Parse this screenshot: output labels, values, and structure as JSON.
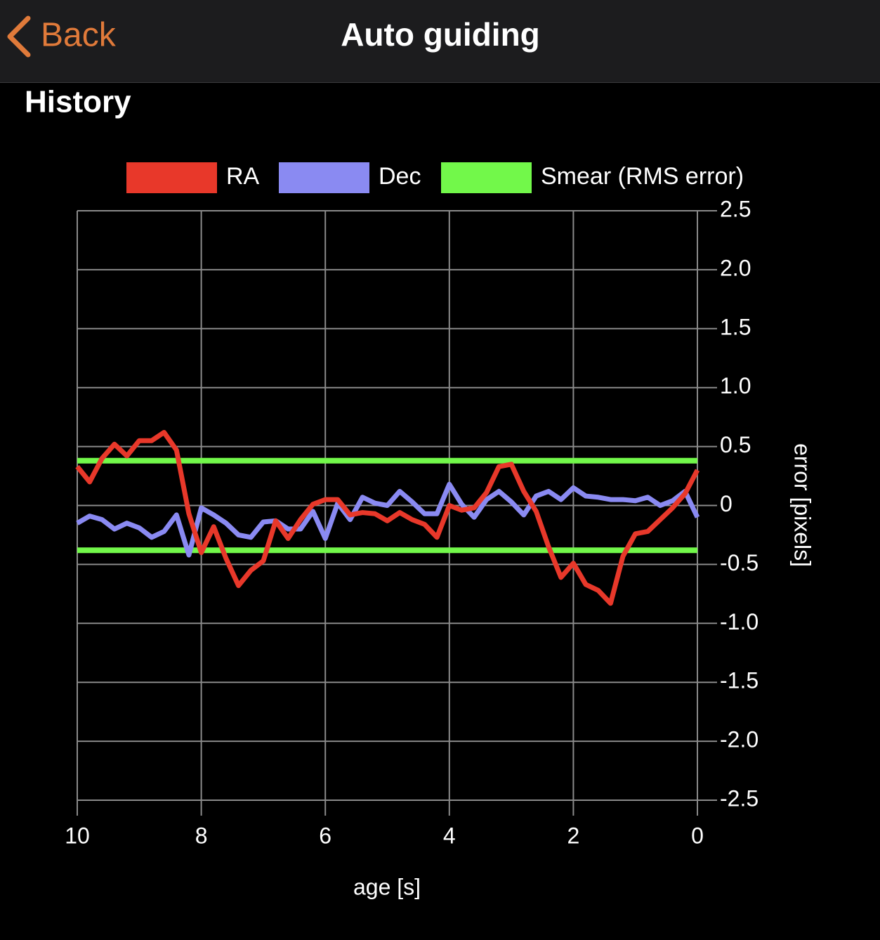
{
  "header": {
    "back": "Back",
    "title": "Auto guiding"
  },
  "section_title": "History",
  "chart_data": {
    "type": "line",
    "x": [
      10,
      9.8,
      9.6,
      9.4,
      9.2,
      9,
      8.8,
      8.6,
      8.4,
      8.2,
      8,
      7.8,
      7.6,
      7.4,
      7.2,
      7,
      6.8,
      6.6,
      6.4,
      6.2,
      6,
      5.8,
      5.6,
      5.4,
      5.2,
      5,
      4.8,
      4.6,
      4.4,
      4.2,
      4,
      3.8,
      3.6,
      3.4,
      3.2,
      3,
      2.8,
      2.6,
      2.4,
      2.2,
      2,
      1.8,
      1.6,
      1.4,
      1.2,
      1,
      0.8,
      0.6,
      0.4,
      0.2,
      0
    ],
    "series": [
      {
        "name": "RA",
        "color": "#e8382a",
        "values": [
          0.33,
          0.2,
          0.4,
          0.52,
          0.42,
          0.55,
          0.55,
          0.62,
          0.47,
          -0.07,
          -0.4,
          -0.18,
          -0.45,
          -0.68,
          -0.55,
          -0.47,
          -0.13,
          -0.28,
          -0.12,
          0.01,
          0.05,
          0.05,
          -0.08,
          -0.06,
          -0.07,
          -0.13,
          -0.06,
          -0.12,
          -0.16,
          -0.27,
          0,
          -0.04,
          -0.02,
          0.11,
          0.33,
          0.35,
          0.12,
          -0.05,
          -0.35,
          -0.61,
          -0.49,
          -0.67,
          -0.72,
          -0.83,
          -0.43,
          -0.24,
          -0.22,
          -0.12,
          -0.02,
          0.1,
          0.3
        ]
      },
      {
        "name": "Dec",
        "color": "#8a8af2",
        "values": [
          -0.15,
          -0.09,
          -0.12,
          -0.2,
          -0.15,
          -0.19,
          -0.27,
          -0.22,
          -0.08,
          -0.42,
          -0.02,
          -0.08,
          -0.15,
          -0.25,
          -0.27,
          -0.14,
          -0.13,
          -0.2,
          -0.2,
          -0.05,
          -0.28,
          0.02,
          -0.12,
          0.07,
          0.02,
          0,
          0.12,
          0.03,
          -0.07,
          -0.07,
          0.18,
          0.01,
          -0.1,
          0.05,
          0.12,
          0.03,
          -0.08,
          0.08,
          0.12,
          0.05,
          0.15,
          0.08,
          0.07,
          0.05,
          0.05,
          0.04,
          0.07,
          0,
          0.04,
          0.12,
          -0.1
        ]
      }
    ],
    "smear": {
      "name": "Smear (RMS error)",
      "color": "#72f84a",
      "value": 0.38
    },
    "xlabel": "age [s]",
    "ylabel": "error [pixels]",
    "xlim": [
      10,
      0
    ],
    "xticks": [
      10,
      8,
      6,
      4,
      2,
      0
    ],
    "ylim": [
      -2.5,
      2.5
    ],
    "yticks": [
      2.5,
      {
        "value": 2,
        "label": "2.0"
      },
      1.5,
      {
        "value": 1,
        "label": "1.0"
      },
      0.5,
      0,
      -0.5,
      {
        "value": -1,
        "label": "-1.0"
      },
      -1.5,
      {
        "value": -2,
        "label": "-2.0"
      },
      -2.5
    ],
    "grid": true
  }
}
